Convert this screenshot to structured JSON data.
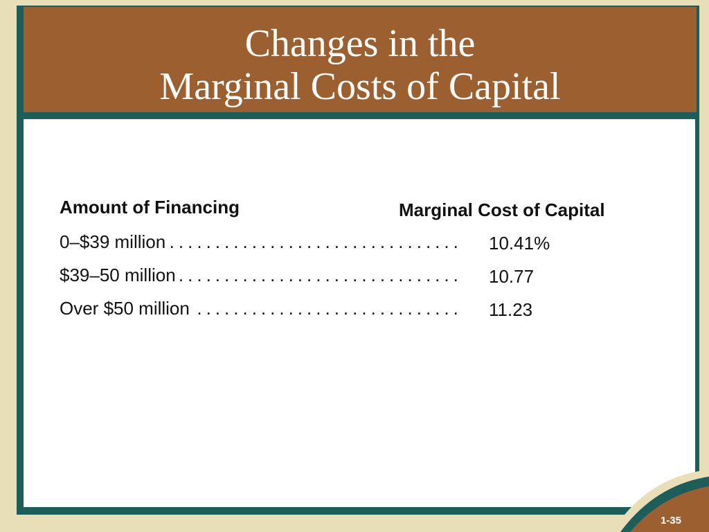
{
  "slide": {
    "title_line1": "Changes in the",
    "title_line2": "Marginal Costs of Capital",
    "slide_number": "1-35"
  },
  "table": {
    "header_amount": "Amount of Financing",
    "header_cost": "Marginal Cost of Capital",
    "rows": [
      {
        "amount": "0–$39 million",
        "cost": "10.41%"
      },
      {
        "amount": "$39–50 million",
        "cost": "10.77"
      },
      {
        "amount": "Over $50 million",
        "cost": "11.23"
      }
    ]
  },
  "colors": {
    "background": "#e8dfb8",
    "title_bar": "#9c6030",
    "frame": "#1d5d5a",
    "content": "#ffffff"
  }
}
